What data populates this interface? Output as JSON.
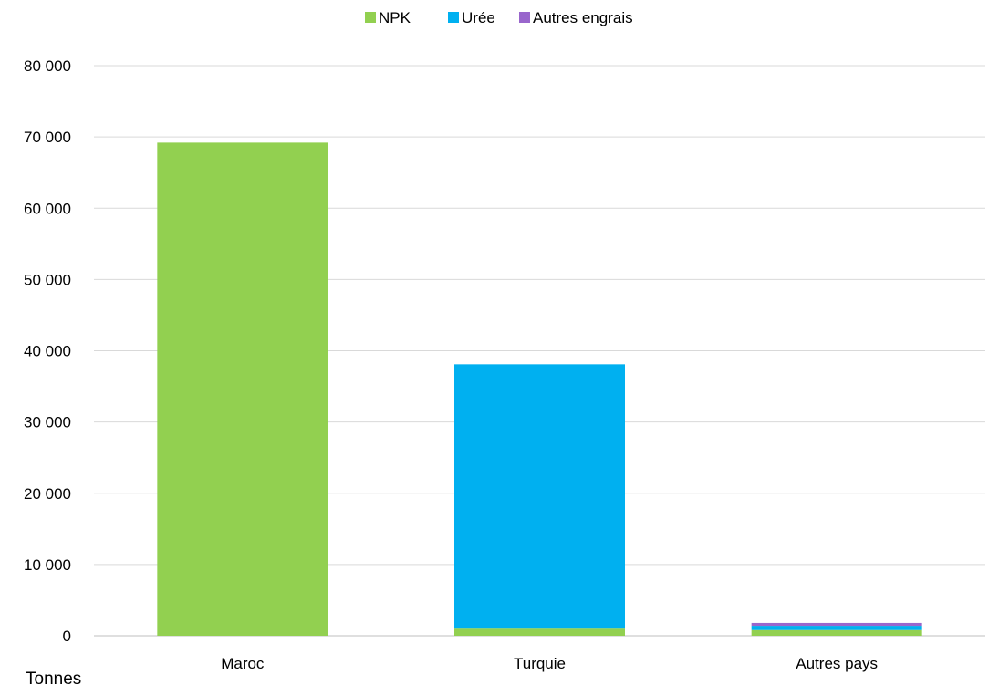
{
  "chart_data": {
    "type": "bar",
    "stacked": true,
    "categories": [
      "Maroc",
      "Turquie",
      "Autres pays"
    ],
    "series": [
      {
        "name": "NPK",
        "color": "#92d050",
        "values": [
          69200,
          1000,
          800
        ]
      },
      {
        "name": "Urée",
        "color": "#00b0f0",
        "values": [
          0,
          37100,
          600
        ]
      },
      {
        "name": "Autres engrais",
        "color": "#9966cc",
        "values": [
          0,
          0,
          400
        ]
      }
    ],
    "y_ticks": [
      "0",
      "10 000",
      "20 000",
      "30 000",
      "40 000",
      "50 000",
      "60 000",
      "70 000",
      "80 000"
    ],
    "ylim": [
      0,
      80000
    ],
    "ylabel": "Tonnes",
    "grid": true,
    "legend_position": "top-center"
  }
}
